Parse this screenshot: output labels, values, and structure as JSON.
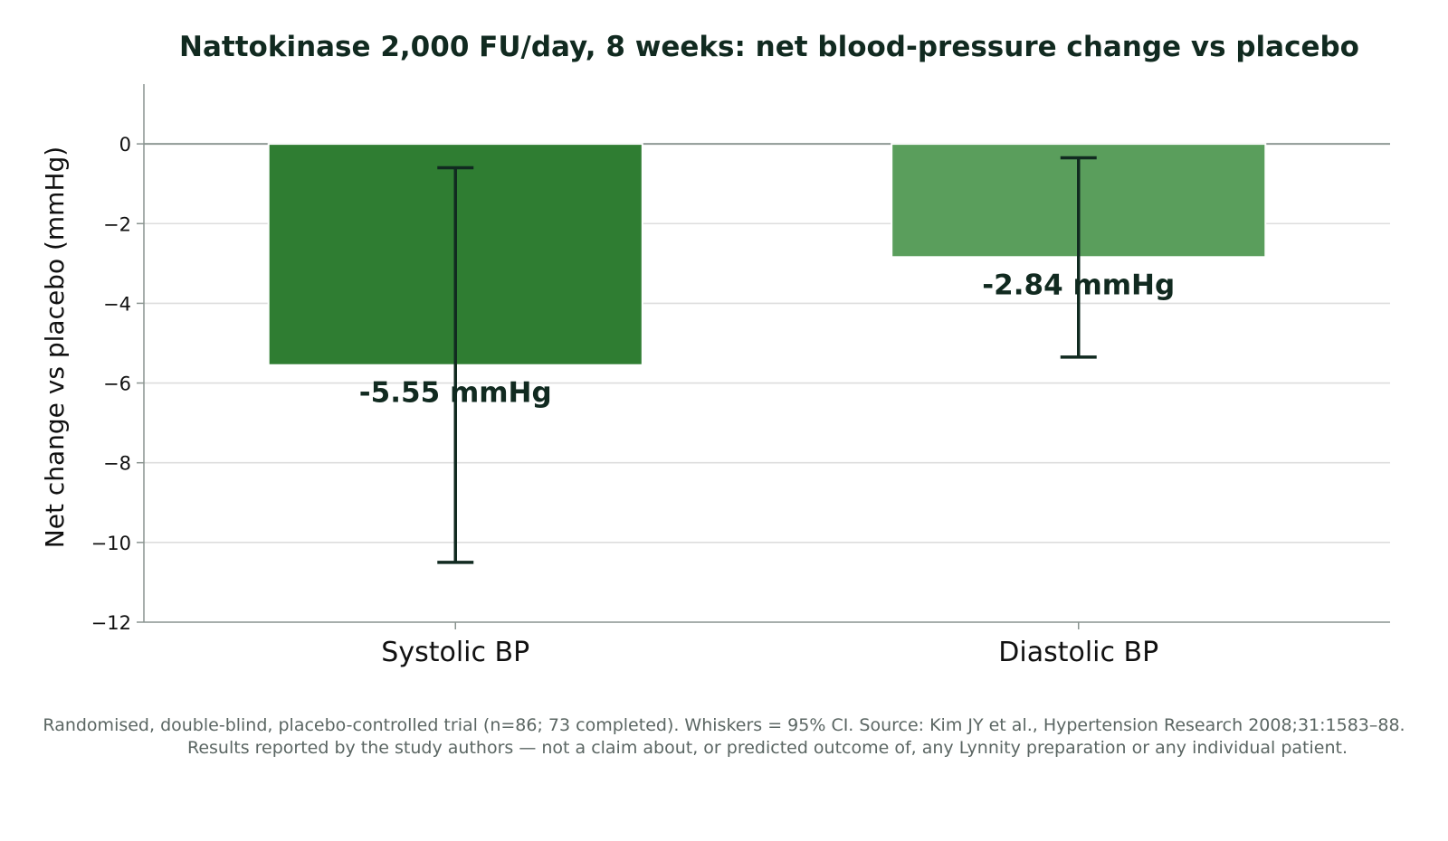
{
  "chart_data": {
    "type": "bar",
    "title": "Nattokinase 2,000 FU/day, 8 weeks: net blood-pressure change vs placebo",
    "xlabel": "",
    "ylabel": "Net change vs placebo (mmHg)",
    "categories": [
      "Systolic BP",
      "Diastolic BP"
    ],
    "values": [
      -5.55,
      -2.84
    ],
    "ci_lower": [
      -10.5,
      -5.35
    ],
    "ci_upper": [
      -0.6,
      -0.35
    ],
    "value_labels": [
      "-5.55 mmHg",
      "-2.84 mmHg"
    ],
    "colors": [
      "#2f7d32",
      "#5a9e5c"
    ],
    "ylim": [
      -12,
      1.5
    ],
    "yticks": [
      0,
      -2,
      -4,
      -6,
      -8,
      -10,
      -12
    ],
    "ytick_labels": [
      "0",
      "−2",
      "−4",
      "−6",
      "−8",
      "−10",
      "−12"
    ],
    "grid": true,
    "legend": "none"
  },
  "footnote": {
    "line1": "Randomised, double-blind, placebo-controlled trial (n=86; 73 completed). Whiskers = 95% CI. Source: Kim JY et al., Hypertension Research 2008;31:1583–88.",
    "line2": "Results reported by the study authors — not a claim about, or predicted outcome of, any Lynnity preparation or any individual patient."
  }
}
